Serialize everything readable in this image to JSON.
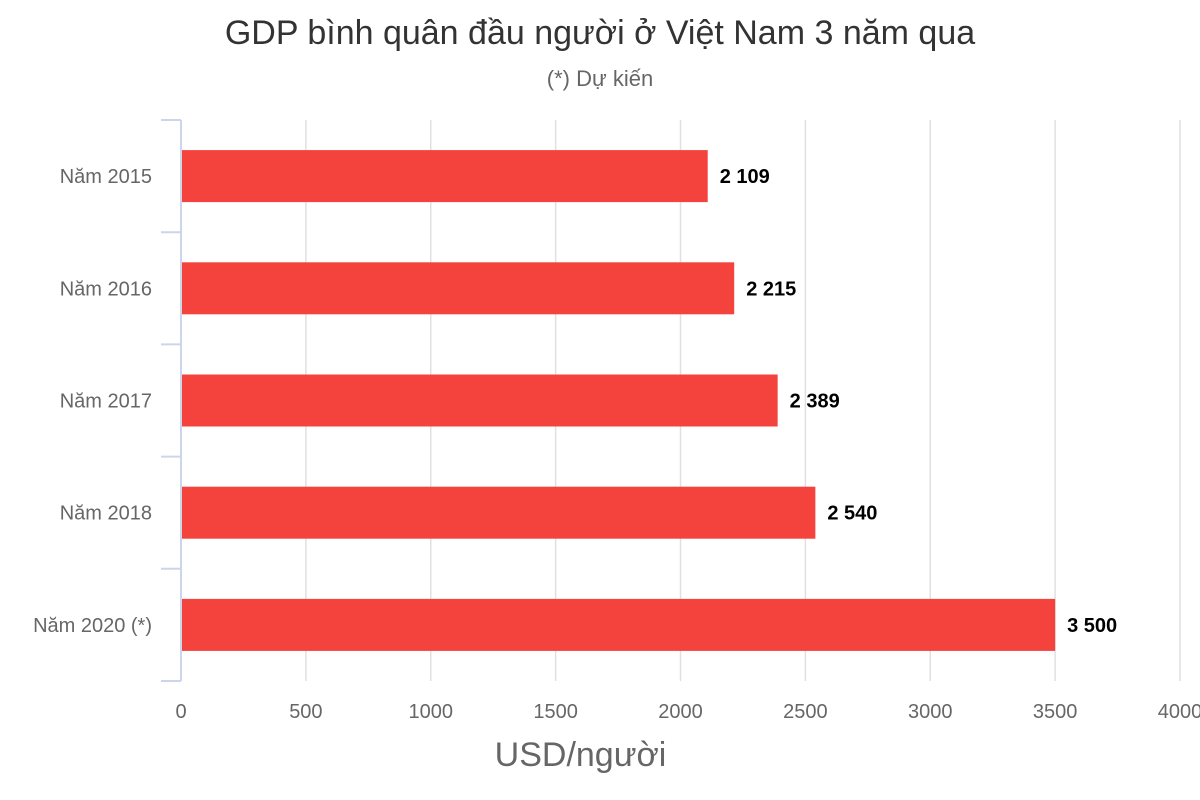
{
  "chart_data": {
    "type": "bar",
    "orientation": "horizontal",
    "title": "GDP bình quân đầu người ở Việt Nam 3 năm qua",
    "subtitle": "(*) Dự kiến",
    "categories": [
      "Năm 2015",
      "Năm 2016",
      "Năm 2017",
      "Năm 2018",
      "Năm 2020 (*)"
    ],
    "values": [
      2109,
      2215,
      2389,
      2540,
      3500
    ],
    "data_labels": [
      "2 109",
      "2 215",
      "2 389",
      "2 540",
      "3 500"
    ],
    "xlabel": "USD/người",
    "ylabel": "",
    "xlim": [
      0,
      4000
    ],
    "ticks": [
      0,
      500,
      1000,
      1500,
      2000,
      2500,
      3000,
      3500,
      4000
    ],
    "grid": true,
    "legend": "none",
    "colors": {
      "bar": "#f4433c",
      "grid": "#e0e0e0",
      "axis": "#ccd6eb"
    }
  }
}
